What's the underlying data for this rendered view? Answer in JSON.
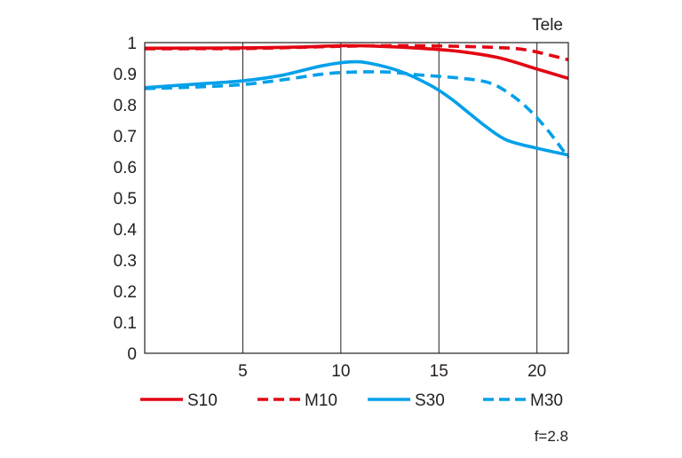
{
  "chart_data": {
    "type": "line",
    "corner_label": "Tele",
    "footnote": "f=2.8",
    "xlim": [
      0,
      21.6
    ],
    "ylim": [
      0,
      1
    ],
    "x_ticks": [
      5,
      10,
      15,
      20
    ],
    "y_ticks": [
      0,
      0.1,
      0.2,
      0.3,
      0.4,
      0.5,
      0.6,
      0.7,
      0.8,
      0.9,
      1
    ],
    "y_tick_labels": [
      "0",
      "0.1",
      "0.2",
      "0.3",
      "0.4",
      "0.5",
      "0.6",
      "0.7",
      "0.8",
      "0.9",
      "1"
    ],
    "grid": "vertical",
    "legend_position": "bottom",
    "series": [
      {
        "name": "S10",
        "color": "#e30613",
        "dash": "solid",
        "points": [
          [
            0,
            0.982
          ],
          [
            5,
            0.983
          ],
          [
            8,
            0.986
          ],
          [
            10,
            0.99
          ],
          [
            12,
            0.988
          ],
          [
            14,
            0.982
          ],
          [
            16,
            0.972
          ],
          [
            18,
            0.952
          ],
          [
            20,
            0.915
          ],
          [
            21.6,
            0.885
          ]
        ]
      },
      {
        "name": "M10",
        "color": "#e30613",
        "dash": "dashed",
        "points": [
          [
            0,
            0.98
          ],
          [
            5,
            0.981
          ],
          [
            8,
            0.985
          ],
          [
            10,
            0.988
          ],
          [
            12,
            0.99
          ],
          [
            14,
            0.99
          ],
          [
            16,
            0.988
          ],
          [
            18,
            0.984
          ],
          [
            19.5,
            0.976
          ],
          [
            21.6,
            0.945
          ]
        ]
      },
      {
        "name": "S30",
        "color": "#00a0e9",
        "dash": "solid",
        "points": [
          [
            0,
            0.855
          ],
          [
            3,
            0.868
          ],
          [
            5,
            0.877
          ],
          [
            7,
            0.895
          ],
          [
            9,
            0.925
          ],
          [
            10.5,
            0.938
          ],
          [
            11.5,
            0.933
          ],
          [
            13,
            0.908
          ],
          [
            14.5,
            0.865
          ],
          [
            15.5,
            0.825
          ],
          [
            16.5,
            0.775
          ],
          [
            17.5,
            0.725
          ],
          [
            18.5,
            0.685
          ],
          [
            20,
            0.66
          ],
          [
            21.6,
            0.638
          ]
        ]
      },
      {
        "name": "M30",
        "color": "#00a0e9",
        "dash": "dashed",
        "points": [
          [
            0,
            0.852
          ],
          [
            3,
            0.858
          ],
          [
            5,
            0.865
          ],
          [
            7,
            0.88
          ],
          [
            9,
            0.898
          ],
          [
            10.5,
            0.905
          ],
          [
            12.5,
            0.905
          ],
          [
            14,
            0.896
          ],
          [
            16,
            0.886
          ],
          [
            17.5,
            0.872
          ],
          [
            18.5,
            0.84
          ],
          [
            19.5,
            0.79
          ],
          [
            20.5,
            0.722
          ],
          [
            21.6,
            0.63
          ]
        ]
      }
    ]
  }
}
